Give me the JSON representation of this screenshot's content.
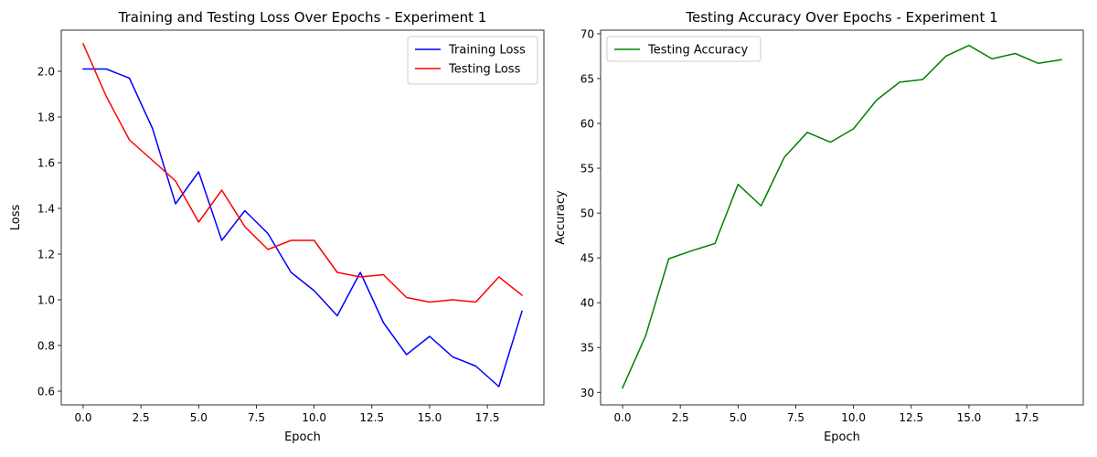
{
  "chart_data": [
    {
      "type": "line",
      "title": "Training and Testing Loss Over Epochs - Experiment 1",
      "xlabel": "Epoch",
      "ylabel": "Loss",
      "xlim": [
        -0.95,
        19.95
      ],
      "ylim": [
        0.54,
        2.18
      ],
      "xticks": [
        0,
        2.5,
        5,
        7.5,
        10,
        12.5,
        15,
        17.5
      ],
      "xtick_labels": [
        "0.0",
        "2.5",
        "5.0",
        "7.5",
        "10.0",
        "12.5",
        "15.0",
        "17.5"
      ],
      "yticks": [
        0.6,
        0.8,
        1.0,
        1.2,
        1.4,
        1.6,
        1.8,
        2.0
      ],
      "ytick_labels": [
        "0.6",
        "0.8",
        "1.0",
        "1.2",
        "1.4",
        "1.6",
        "1.8",
        "2.0"
      ],
      "grid": false,
      "legend_position": "top-right",
      "x": [
        0,
        1,
        2,
        3,
        4,
        5,
        6,
        7,
        8,
        9,
        10,
        11,
        12,
        13,
        14,
        15,
        16,
        17,
        18,
        19
      ],
      "series": [
        {
          "name": "Training Loss",
          "color": "#0000ff",
          "values": [
            2.01,
            2.01,
            1.97,
            1.75,
            1.42,
            1.56,
            1.26,
            1.39,
            1.29,
            1.12,
            1.04,
            0.93,
            1.12,
            0.9,
            0.76,
            0.84,
            0.75,
            0.71,
            0.62,
            0.95
          ]
        },
        {
          "name": "Testing Loss",
          "color": "#ff0000",
          "values": [
            2.12,
            1.89,
            1.7,
            1.61,
            1.52,
            1.34,
            1.48,
            1.32,
            1.22,
            1.26,
            1.26,
            1.12,
            1.1,
            1.11,
            1.01,
            0.99,
            1.0,
            0.99,
            1.1,
            1.02
          ]
        }
      ]
    },
    {
      "type": "line",
      "title": "Testing Accuracy Over Epochs - Experiment 1",
      "xlabel": "Epoch",
      "ylabel": "Accuracy",
      "xlim": [
        -0.95,
        19.95
      ],
      "ylim": [
        28.6,
        70.4
      ],
      "xticks": [
        0,
        2.5,
        5,
        7.5,
        10,
        12.5,
        15,
        17.5
      ],
      "xtick_labels": [
        "0.0",
        "2.5",
        "5.0",
        "7.5",
        "10.0",
        "12.5",
        "15.0",
        "17.5"
      ],
      "yticks": [
        30,
        35,
        40,
        45,
        50,
        55,
        60,
        65,
        70
      ],
      "ytick_labels": [
        "30",
        "35",
        "40",
        "45",
        "50",
        "55",
        "60",
        "65",
        "70"
      ],
      "grid": false,
      "legend_position": "top-left",
      "x": [
        0,
        1,
        2,
        3,
        4,
        5,
        6,
        7,
        8,
        9,
        10,
        11,
        12,
        13,
        14,
        15,
        16,
        17,
        18,
        19
      ],
      "series": [
        {
          "name": "Testing Accuracy",
          "color": "#008000",
          "values": [
            30.5,
            36.3,
            44.9,
            45.8,
            46.6,
            53.2,
            50.8,
            56.2,
            59.0,
            57.9,
            59.4,
            62.6,
            64.6,
            64.9,
            67.5,
            68.7,
            67.2,
            67.8,
            66.7,
            67.1
          ]
        }
      ]
    }
  ]
}
